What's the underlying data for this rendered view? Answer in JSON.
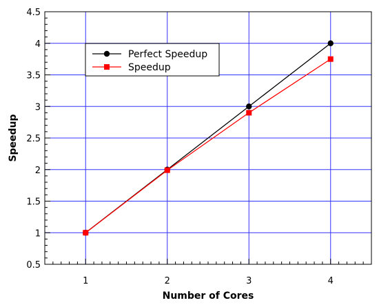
{
  "chart_data": {
    "type": "line",
    "title": "",
    "xlabel": "Number of Cores",
    "ylabel": "Speedup",
    "x": [
      1,
      2,
      3,
      4
    ],
    "xlim": [
      0.5,
      4.5
    ],
    "ylim": [
      0.5,
      4.5
    ],
    "xticks": [
      1,
      2,
      3,
      4
    ],
    "yticks": [
      0.5,
      1,
      1.5,
      2,
      2.5,
      3,
      3.5,
      4,
      4.5
    ],
    "ytick_labels": [
      "0.5",
      "1",
      "1.5",
      "2",
      "2.5",
      "3",
      "3.5",
      "4",
      "4.5"
    ],
    "grid": true,
    "grid_color": "#3333ff",
    "legend_position": "top-left",
    "series": [
      {
        "name": "Perfect Speedup",
        "values": [
          1,
          2,
          3,
          4
        ],
        "color": "#000000",
        "marker": "circle"
      },
      {
        "name": "Speedup",
        "values": [
          1,
          1.99,
          2.9,
          3.75
        ],
        "color": "#ff0000",
        "marker": "square"
      }
    ]
  }
}
